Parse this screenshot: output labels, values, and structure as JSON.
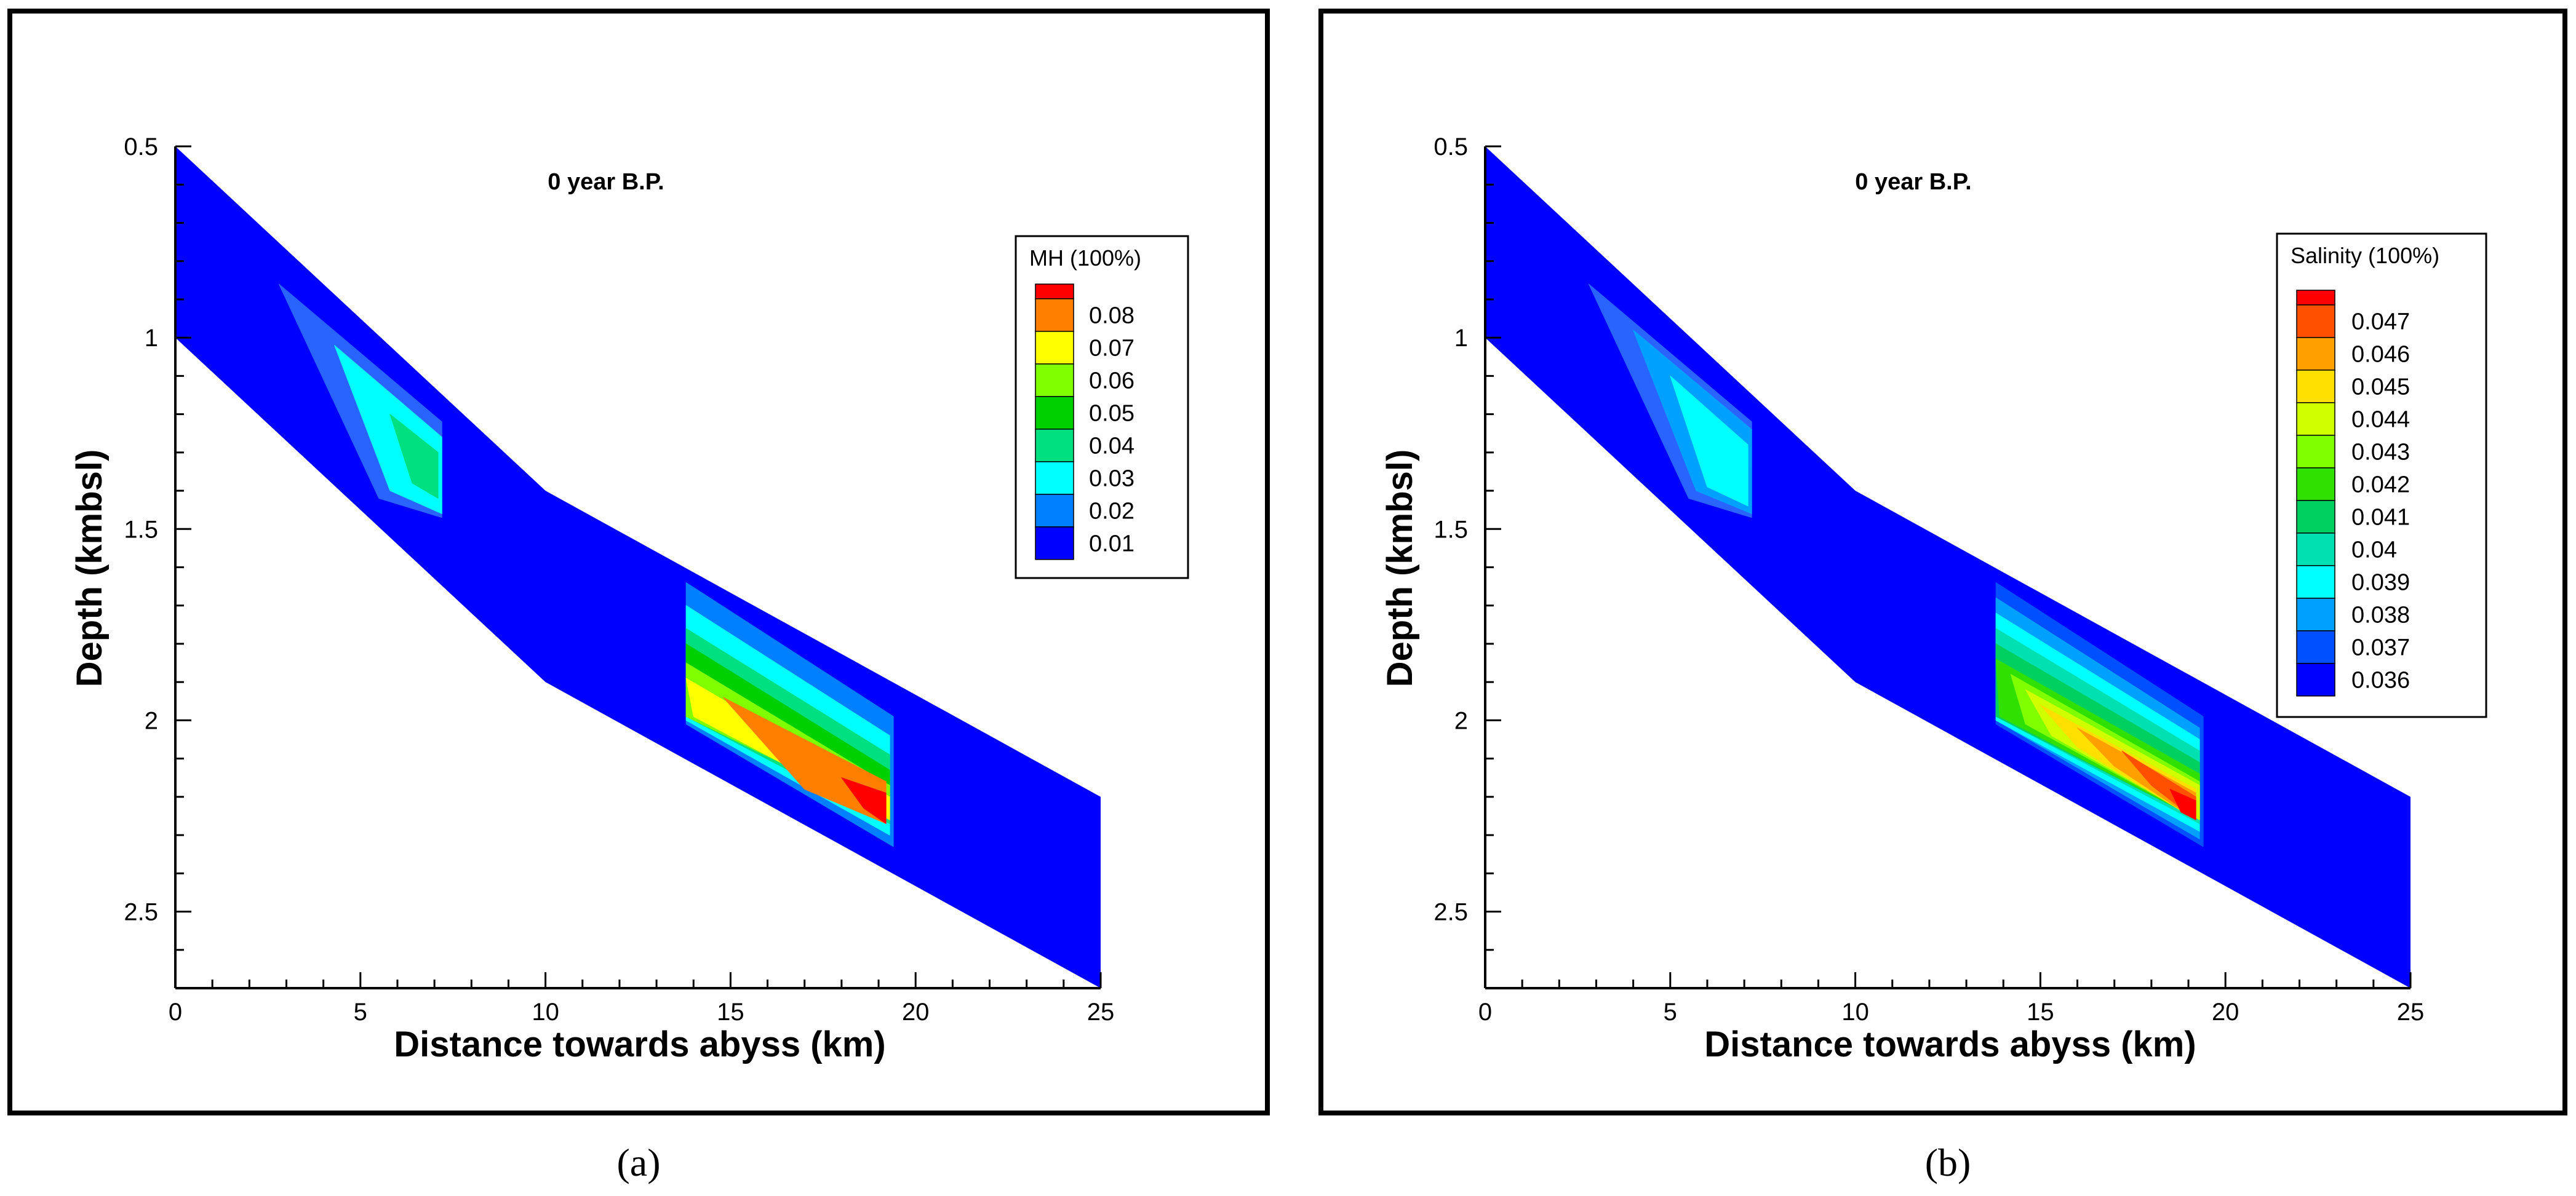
{
  "figure_captions": [
    "(a)",
    "(b)"
  ],
  "chart_data": [
    {
      "type": "contour",
      "panel": "a",
      "caption_letter": "a",
      "title": "0 year B.P.",
      "xlabel": "Distance towards abyss (km)",
      "ylabel": "Depth (kmbsl)",
      "xlim": [
        0,
        25
      ],
      "ylim": [
        0.5,
        2.7
      ],
      "xticks": [
        "0",
        "5",
        "10",
        "15",
        "20",
        "25"
      ],
      "yticks": [
        "0.5",
        "1",
        "1.5",
        "2",
        "2.5"
      ],
      "legend": {
        "title": "MH (100%)",
        "levels": [
          "0.08",
          "0.07",
          "0.06",
          "0.05",
          "0.04",
          "0.03",
          "0.02",
          "0.01"
        ],
        "colors": [
          "#ff0000",
          "#ff7f00",
          "#ffff00",
          "#80ff00",
          "#00d000",
          "#00e080",
          "#00ffff",
          "#0080ff",
          "#0000ff"
        ]
      },
      "domain_outline": [
        [
          0,
          0.5
        ],
        [
          10,
          1.4
        ],
        [
          25,
          2.2
        ],
        [
          25,
          2.7
        ],
        [
          10,
          1.9
        ],
        [
          0,
          1.0
        ]
      ],
      "zones": [
        {
          "x": [
            2.8,
            7.3
          ],
          "top": [
            0.86,
            1.22
          ],
          "bot": [
            1.36,
            1.47
          ],
          "rings": [
            {
              "poly": [
                [
                  2.8,
                  0.86
                ],
                [
                  7.2,
                  1.22
                ],
                [
                  7.2,
                  1.47
                ],
                [
                  5.5,
                  1.42
                ]
              ],
              "color": "#2a64ff"
            },
            {
              "poly": [
                [
                  4.3,
                  1.02
                ],
                [
                  7.2,
                  1.26
                ],
                [
                  7.2,
                  1.46
                ],
                [
                  5.8,
                  1.4
                ]
              ],
              "color": "#00ffff"
            },
            {
              "poly": [
                [
                  5.8,
                  1.2
                ],
                [
                  7.1,
                  1.3
                ],
                [
                  7.1,
                  1.42
                ],
                [
                  6.4,
                  1.38
                ]
              ],
              "color": "#00e080"
            }
          ]
        },
        {
          "x": [
            13.8,
            19.4
          ],
          "top": [
            1.64,
            1.99
          ],
          "bot": [
            2.0,
            2.33
          ],
          "rings": [
            {
              "poly": [
                [
                  13.8,
                  1.64
                ],
                [
                  19.4,
                  1.99
                ],
                [
                  19.4,
                  2.33
                ],
                [
                  13.8,
                  2.01
                ]
              ],
              "color": "#0080ff"
            },
            {
              "poly": [
                [
                  13.8,
                  1.7
                ],
                [
                  19.3,
                  2.04
                ],
                [
                  19.3,
                  2.3
                ],
                [
                  13.8,
                  2.0
                ]
              ],
              "color": "#00ffff"
            },
            {
              "poly": [
                [
                  13.8,
                  1.76
                ],
                [
                  19.3,
                  2.09
                ],
                [
                  19.3,
                  2.27
                ],
                [
                  13.8,
                  1.99
                ]
              ],
              "color": "#00e080"
            },
            {
              "poly": [
                [
                  13.8,
                  1.8
                ],
                [
                  19.3,
                  2.13
                ],
                [
                  19.3,
                  2.25
                ],
                [
                  13.8,
                  1.99
                ]
              ],
              "color": "#00d000"
            },
            {
              "poly": [
                [
                  13.8,
                  1.85
                ],
                [
                  19.3,
                  2.17
                ],
                [
                  19.3,
                  2.25
                ],
                [
                  13.8,
                  1.99
                ]
              ],
              "color": "#80ff00"
            },
            {
              "poly": [
                [
                  13.8,
                  1.89
                ],
                [
                  19.3,
                  2.2
                ],
                [
                  19.3,
                  2.26
                ],
                [
                  14.0,
                  1.99
                ]
              ],
              "color": "#ffff00"
            },
            {
              "poly": [
                [
                  14.8,
                  1.94
                ],
                [
                  19.2,
                  2.16
                ],
                [
                  19.2,
                  2.27
                ],
                [
                  17.0,
                  2.18
                ]
              ],
              "color": "#ff7f00"
            },
            {
              "poly": [
                [
                  18.0,
                  2.15
                ],
                [
                  19.2,
                  2.19
                ],
                [
                  19.2,
                  2.27
                ],
                [
                  18.6,
                  2.23
                ]
              ],
              "color": "#ff0000"
            }
          ]
        }
      ]
    },
    {
      "type": "contour",
      "panel": "b",
      "caption_letter": "b",
      "title": "0 year B.P.",
      "xlabel": "Distance towards abyss (km)",
      "ylabel": "Depth (kmbsl)",
      "xlim": [
        0,
        25
      ],
      "ylim": [
        0.5,
        2.7
      ],
      "xticks": [
        "0",
        "5",
        "10",
        "15",
        "20",
        "25"
      ],
      "yticks": [
        "0.5",
        "1",
        "1.5",
        "2",
        "2.5"
      ],
      "legend": {
        "title": "Salinity (100%)",
        "levels": [
          "0.047",
          "0.046",
          "0.045",
          "0.044",
          "0.043",
          "0.042",
          "0.041",
          "0.04",
          "0.039",
          "0.038",
          "0.037",
          "0.036"
        ],
        "colors": [
          "#ff0000",
          "#ff5000",
          "#ffa000",
          "#ffe000",
          "#d0ff00",
          "#80ff00",
          "#30e000",
          "#00d060",
          "#00e0b0",
          "#00ffff",
          "#00a0ff",
          "#0050ff",
          "#0000ff"
        ]
      },
      "domain_outline": [
        [
          0,
          0.5
        ],
        [
          10,
          1.4
        ],
        [
          25,
          2.2
        ],
        [
          25,
          2.7
        ],
        [
          10,
          1.9
        ],
        [
          0,
          1.0
        ]
      ],
      "zones": [
        {
          "x": [
            2.8,
            7.3
          ],
          "top": [
            0.86,
            1.22
          ],
          "bot": [
            1.36,
            1.47
          ],
          "rings": [
            {
              "poly": [
                [
                  2.8,
                  0.86
                ],
                [
                  7.2,
                  1.22
                ],
                [
                  7.2,
                  1.47
                ],
                [
                  5.5,
                  1.42
                ]
              ],
              "color": "#2a64ff"
            },
            {
              "poly": [
                [
                  4.0,
                  0.98
                ],
                [
                  7.2,
                  1.24
                ],
                [
                  7.2,
                  1.46
                ],
                [
                  5.7,
                  1.4
                ]
              ],
              "color": "#00a0ff"
            },
            {
              "poly": [
                [
                  5.0,
                  1.1
                ],
                [
                  7.1,
                  1.28
                ],
                [
                  7.1,
                  1.44
                ],
                [
                  6.0,
                  1.39
                ]
              ],
              "color": "#00ffff"
            }
          ]
        },
        {
          "x": [
            13.8,
            19.4
          ],
          "top": [
            1.64,
            1.99
          ],
          "bot": [
            2.0,
            2.33
          ],
          "rings": [
            {
              "poly": [
                [
                  13.8,
                  1.64
                ],
                [
                  19.4,
                  1.99
                ],
                [
                  19.4,
                  2.33
                ],
                [
                  13.8,
                  2.01
                ]
              ],
              "color": "#0050ff"
            },
            {
              "poly": [
                [
                  13.8,
                  1.68
                ],
                [
                  19.3,
                  2.02
                ],
                [
                  19.3,
                  2.31
                ],
                [
                  13.8,
                  2.0
                ]
              ],
              "color": "#00a0ff"
            },
            {
              "poly": [
                [
                  13.8,
                  1.72
                ],
                [
                  19.3,
                  2.05
                ],
                [
                  19.3,
                  2.29
                ],
                [
                  13.8,
                  2.0
                ]
              ],
              "color": "#00ffff"
            },
            {
              "poly": [
                [
                  13.8,
                  1.76
                ],
                [
                  19.3,
                  2.08
                ],
                [
                  19.3,
                  2.27
                ],
                [
                  13.8,
                  1.99
                ]
              ],
              "color": "#00e0b0"
            },
            {
              "poly": [
                [
                  13.8,
                  1.8
                ],
                [
                  19.3,
                  2.11
                ],
                [
                  19.3,
                  2.26
                ],
                [
                  13.8,
                  1.99
                ]
              ],
              "color": "#00d060"
            },
            {
              "poly": [
                [
                  13.8,
                  1.84
                ],
                [
                  19.3,
                  2.14
                ],
                [
                  19.3,
                  2.26
                ],
                [
                  13.9,
                  1.99
                ]
              ],
              "color": "#30e000"
            },
            {
              "poly": [
                [
                  14.2,
                  1.88
                ],
                [
                  19.3,
                  2.16
                ],
                [
                  19.3,
                  2.26
                ],
                [
                  14.6,
                  2.01
                ]
              ],
              "color": "#80ff00"
            },
            {
              "poly": [
                [
                  14.6,
                  1.92
                ],
                [
                  19.3,
                  2.17
                ],
                [
                  19.3,
                  2.26
                ],
                [
                  15.3,
                  2.04
                ]
              ],
              "color": "#d0ff00"
            },
            {
              "poly": [
                [
                  15.0,
                  1.96
                ],
                [
                  19.2,
                  2.18
                ],
                [
                  19.2,
                  2.26
                ],
                [
                  16.0,
                  2.07
                ]
              ],
              "color": "#ffe000"
            },
            {
              "poly": [
                [
                  16.0,
                  2.02
                ],
                [
                  19.2,
                  2.19
                ],
                [
                  19.2,
                  2.26
                ],
                [
                  17.0,
                  2.12
                ]
              ],
              "color": "#ffa000"
            },
            {
              "poly": [
                [
                  17.2,
                  2.08
                ],
                [
                  19.2,
                  2.2
                ],
                [
                  19.2,
                  2.26
                ],
                [
                  18.0,
                  2.17
                ]
              ],
              "color": "#ff5000"
            },
            {
              "poly": [
                [
                  18.5,
                  2.18
                ],
                [
                  19.2,
                  2.21
                ],
                [
                  19.2,
                  2.26
                ],
                [
                  18.8,
                  2.24
                ]
              ],
              "color": "#ff0000"
            }
          ]
        }
      ]
    }
  ]
}
